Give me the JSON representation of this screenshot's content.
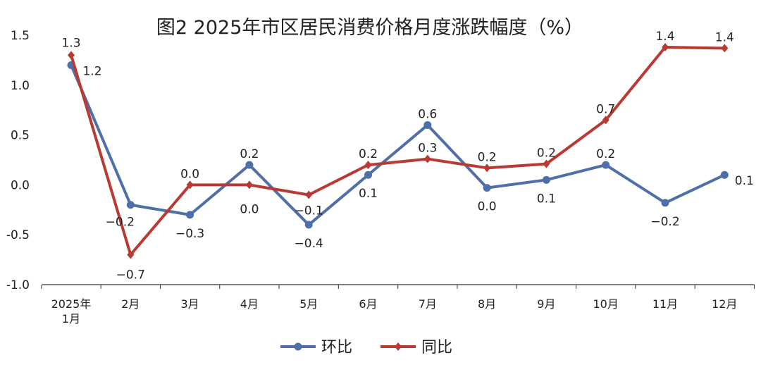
{
  "chart_data": {
    "type": "line",
    "title": "图2  2025年市区居民消费价格月度涨跌幅度（%）",
    "categories": [
      [
        "2025年",
        "1月"
      ],
      [
        "2月"
      ],
      [
        "3月"
      ],
      [
        "4月"
      ],
      [
        "5月"
      ],
      [
        "6月"
      ],
      [
        "7月"
      ],
      [
        "8月"
      ],
      [
        "9月"
      ],
      [
        "10月"
      ],
      [
        "11月"
      ],
      [
        "12月"
      ]
    ],
    "ylim": [
      -1.0,
      1.5
    ],
    "yticks": [
      "1.5",
      "1.0",
      "0.5",
      "0.0",
      "-0.5",
      "-1.0"
    ],
    "ytick_values": [
      1.5,
      1.0,
      0.5,
      0.0,
      -0.5,
      -1.0
    ],
    "grid": false,
    "legend_position": "bottom",
    "series": [
      {
        "name": "环比",
        "color": "#4f6fa8",
        "marker": "circle",
        "values": [
          1.2,
          -0.2,
          -0.3,
          0.2,
          -0.4,
          0.1,
          0.6,
          -0.03,
          0.05,
          0.2,
          -0.18,
          0.1
        ],
        "labels": [
          "1.2",
          "−0.2",
          "−0.3",
          "0.2",
          "−0.4",
          "0.1",
          "0.6",
          "0.0",
          "0.1",
          "0.2",
          "−0.2",
          "0.1"
        ]
      },
      {
        "name": "同比",
        "color": "#b83a32",
        "marker": "diamond",
        "values": [
          1.3,
          -0.7,
          0.0,
          0.0,
          -0.1,
          0.2,
          0.26,
          0.17,
          0.21,
          0.65,
          1.38,
          1.37
        ],
        "labels": [
          "1.3",
          "−0.7",
          "0.0",
          "0.0",
          "−0.1",
          "0.2",
          "0.3",
          "0.2",
          "0.2",
          "0.7",
          "1.4",
          "1.4"
        ]
      }
    ]
  }
}
